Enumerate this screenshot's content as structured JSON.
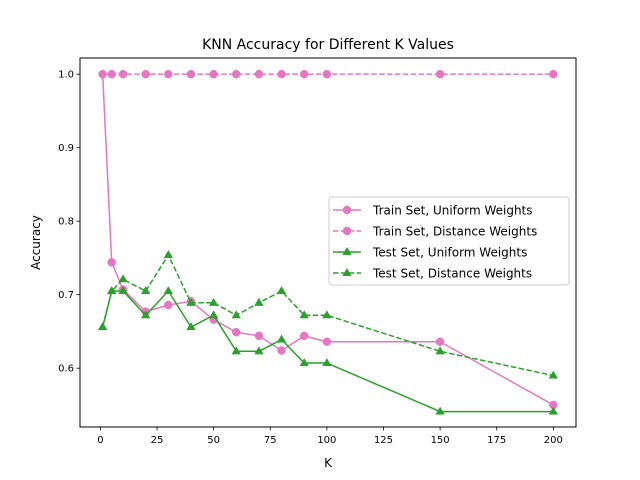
{
  "chart_data": {
    "type": "line",
    "title": "KNN Accuracy for Different K Values",
    "xlabel": "K",
    "ylabel": "Accuracy",
    "xlim": [
      -9,
      210
    ],
    "ylim": [
      0.52,
      1.022
    ],
    "x_ticks": [
      0,
      25,
      50,
      75,
      100,
      125,
      150,
      175,
      200
    ],
    "y_ticks": [
      0.6,
      0.7,
      0.8,
      0.9,
      1.0
    ],
    "y_tick_labels": [
      "0.6",
      "0.7",
      "0.8",
      "0.9",
      "1.0"
    ],
    "grid": false,
    "legend_position": "center-right",
    "series": [
      {
        "name": "Train Set, Uniform Weights",
        "color": "#e377c2",
        "linestyle": "solid",
        "marker": "circle",
        "x": [
          1,
          5,
          10,
          20,
          30,
          40,
          50,
          60,
          70,
          80,
          90,
          100,
          150,
          200
        ],
        "y": [
          1.0,
          0.744,
          0.707,
          0.677,
          0.686,
          0.691,
          0.666,
          0.649,
          0.644,
          0.624,
          0.644,
          0.636,
          0.636,
          0.55
        ]
      },
      {
        "name": "Train Set, Distance Weights",
        "color": "#e377c2",
        "linestyle": "dashed",
        "marker": "circle",
        "x": [
          1,
          5,
          10,
          20,
          30,
          40,
          50,
          60,
          70,
          80,
          90,
          100,
          150,
          200
        ],
        "y": [
          1.0,
          1.0,
          1.0,
          1.0,
          1.0,
          1.0,
          1.0,
          1.0,
          1.0,
          1.0,
          1.0,
          1.0,
          1.0,
          1.0
        ]
      },
      {
        "name": "Test Set, Uniform Weights",
        "color": "#2ca02c",
        "linestyle": "solid",
        "marker": "triangle",
        "x": [
          1,
          5,
          10,
          20,
          30,
          40,
          50,
          60,
          70,
          80,
          90,
          100,
          150,
          200
        ],
        "y": [
          0.656,
          0.705,
          0.705,
          0.672,
          0.705,
          0.656,
          0.672,
          0.623,
          0.623,
          0.639,
          0.607,
          0.607,
          0.541,
          0.541
        ]
      },
      {
        "name": "Test Set, Distance Weights",
        "color": "#2ca02c",
        "linestyle": "dashed",
        "marker": "triangle",
        "x": [
          1,
          5,
          10,
          20,
          30,
          40,
          50,
          60,
          70,
          80,
          90,
          100,
          150,
          200
        ],
        "y": [
          0.656,
          0.705,
          0.721,
          0.705,
          0.754,
          0.689,
          0.689,
          0.672,
          0.689,
          0.705,
          0.672,
          0.672,
          0.623,
          0.59
        ]
      }
    ]
  }
}
